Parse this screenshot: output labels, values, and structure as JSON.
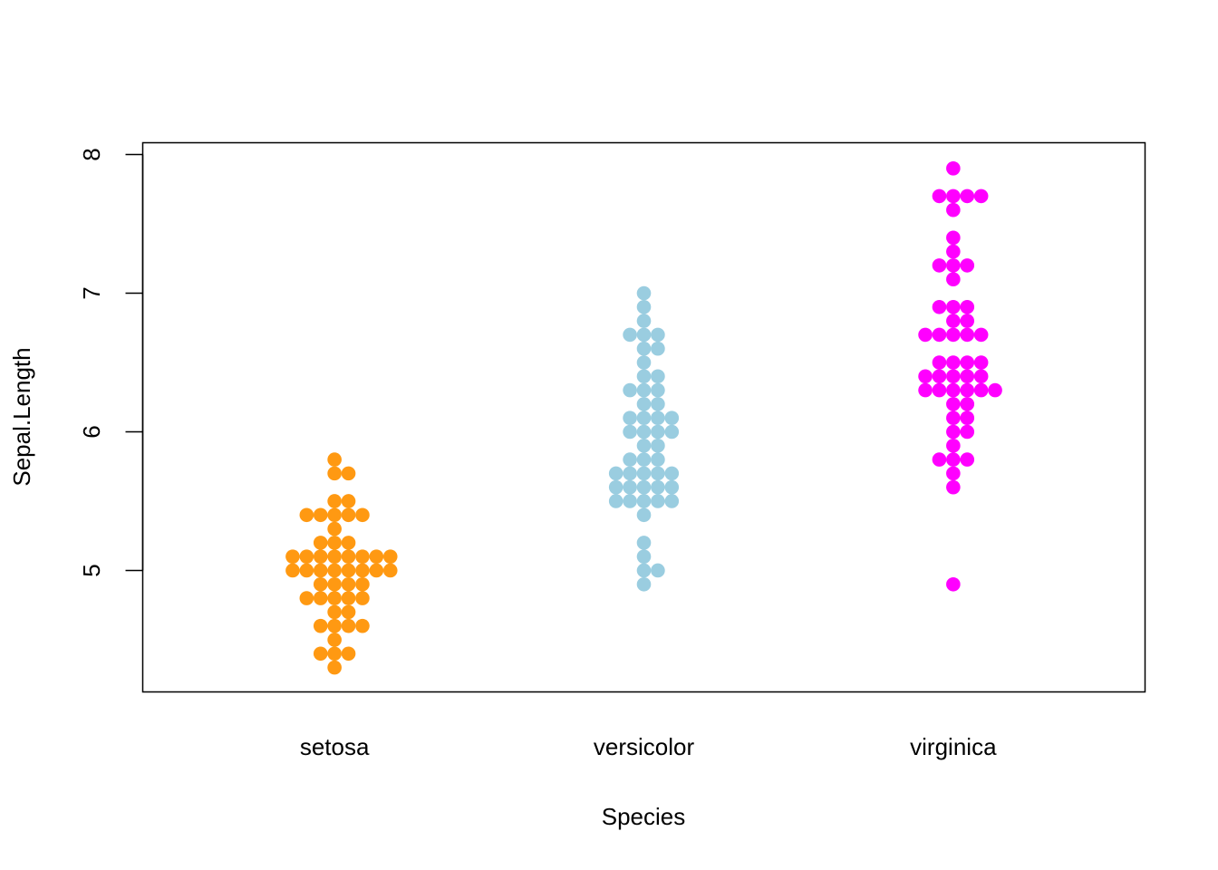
{
  "chart_data": {
    "type": "scatter",
    "subtype": "beeswarm",
    "title": "",
    "xlabel": "Species",
    "ylabel": "Sepal.Length",
    "categories": [
      "setosa",
      "versicolor",
      "virginica"
    ],
    "ylim": [
      4.124,
      8.085
    ],
    "yticks": [
      5,
      6,
      7,
      8
    ],
    "ytick_labels": [
      "5",
      "6",
      "7",
      "8"
    ],
    "grid": false,
    "legend": "none",
    "series": [
      {
        "name": "setosa",
        "color": "#FF9912",
        "value_counts": [
          [
            4.3,
            1
          ],
          [
            4.4,
            3
          ],
          [
            4.5,
            1
          ],
          [
            4.6,
            4
          ],
          [
            4.7,
            2
          ],
          [
            4.8,
            5
          ],
          [
            4.9,
            4
          ],
          [
            5.0,
            8
          ],
          [
            5.1,
            8
          ],
          [
            5.2,
            3
          ],
          [
            5.3,
            1
          ],
          [
            5.4,
            5
          ],
          [
            5.5,
            2
          ],
          [
            5.7,
            2
          ],
          [
            5.8,
            1
          ]
        ]
      },
      {
        "name": "versicolor",
        "color": "#9ACDE0",
        "value_counts": [
          [
            4.9,
            1
          ],
          [
            5.0,
            2
          ],
          [
            5.1,
            1
          ],
          [
            5.2,
            1
          ],
          [
            5.4,
            1
          ],
          [
            5.5,
            5
          ],
          [
            5.6,
            5
          ],
          [
            5.7,
            5
          ],
          [
            5.8,
            3
          ],
          [
            5.9,
            2
          ],
          [
            6.0,
            4
          ],
          [
            6.1,
            4
          ],
          [
            6.2,
            2
          ],
          [
            6.3,
            3
          ],
          [
            6.4,
            2
          ],
          [
            6.5,
            1
          ],
          [
            6.6,
            2
          ],
          [
            6.7,
            3
          ],
          [
            6.8,
            1
          ],
          [
            6.9,
            1
          ],
          [
            7.0,
            1
          ]
        ]
      },
      {
        "name": "virginica",
        "color": "#FF00FF",
        "value_counts": [
          [
            4.9,
            1
          ],
          [
            5.6,
            1
          ],
          [
            5.7,
            1
          ],
          [
            5.8,
            3
          ],
          [
            5.9,
            1
          ],
          [
            6.0,
            2
          ],
          [
            6.1,
            2
          ],
          [
            6.2,
            2
          ],
          [
            6.3,
            6
          ],
          [
            6.4,
            5
          ],
          [
            6.5,
            4
          ],
          [
            6.7,
            5
          ],
          [
            6.8,
            2
          ],
          [
            6.9,
            3
          ],
          [
            7.1,
            1
          ],
          [
            7.2,
            3
          ],
          [
            7.3,
            1
          ],
          [
            7.4,
            1
          ],
          [
            7.6,
            1
          ],
          [
            7.7,
            4
          ],
          [
            7.9,
            1
          ]
        ]
      }
    ]
  }
}
